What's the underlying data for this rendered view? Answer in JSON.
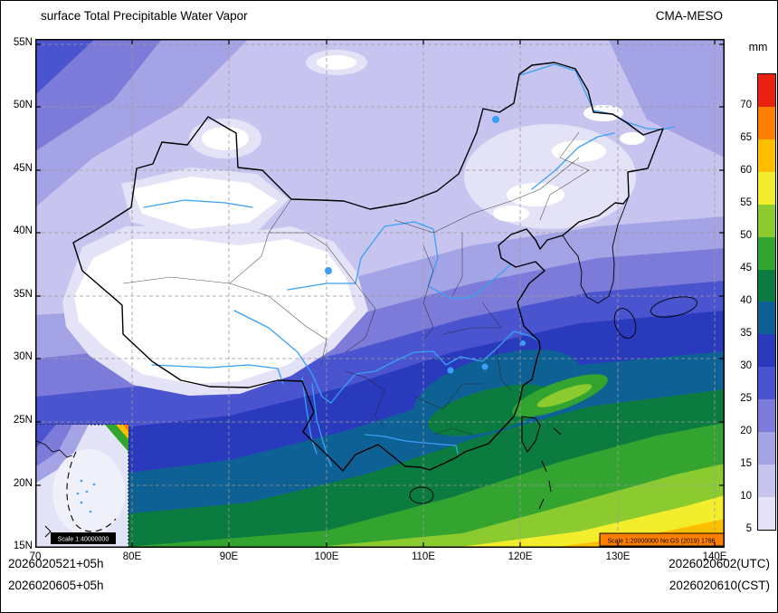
{
  "header": {
    "title": "surface Total Precipitable Water Vapor",
    "model": "CMA-MESO"
  },
  "colorbar": {
    "unit": "mm",
    "levels": [
      5,
      10,
      15,
      20,
      25,
      30,
      35,
      40,
      45,
      50,
      55,
      60,
      65,
      70
    ],
    "colors": [
      "#e4e2f6",
      "#c7c5ef",
      "#a4a3e6",
      "#7c7bd9",
      "#4b54cf",
      "#2a3abc",
      "#0e6195",
      "#0c7b3f",
      "#33a42f",
      "#8ccb30",
      "#f2ee2e",
      "#ffbe00",
      "#ff7f00",
      "#e8220e"
    ]
  },
  "axes": {
    "x_ticks": [
      "70",
      "80E",
      "90E",
      "100E",
      "110E",
      "120E",
      "130E",
      "140E"
    ],
    "y_ticks": [
      "15N",
      "20N",
      "25N",
      "30N",
      "35N",
      "40N",
      "45N",
      "50N",
      "55N"
    ]
  },
  "footer": {
    "left_line1": "2026020521+05h",
    "left_line2": "2026020605+05h",
    "right_line1": "2026020602(UTC)",
    "right_line2": "2026020610(CST)"
  },
  "map": {
    "inset_scale": "Scale 1:40000000",
    "map_scale": "Scale 1:20000000 No:GS (2019) 1786",
    "colors": {
      "white": "#ffffff",
      "river": "#3aa0f5",
      "grid": "#999999",
      "border": "#000000"
    }
  }
}
